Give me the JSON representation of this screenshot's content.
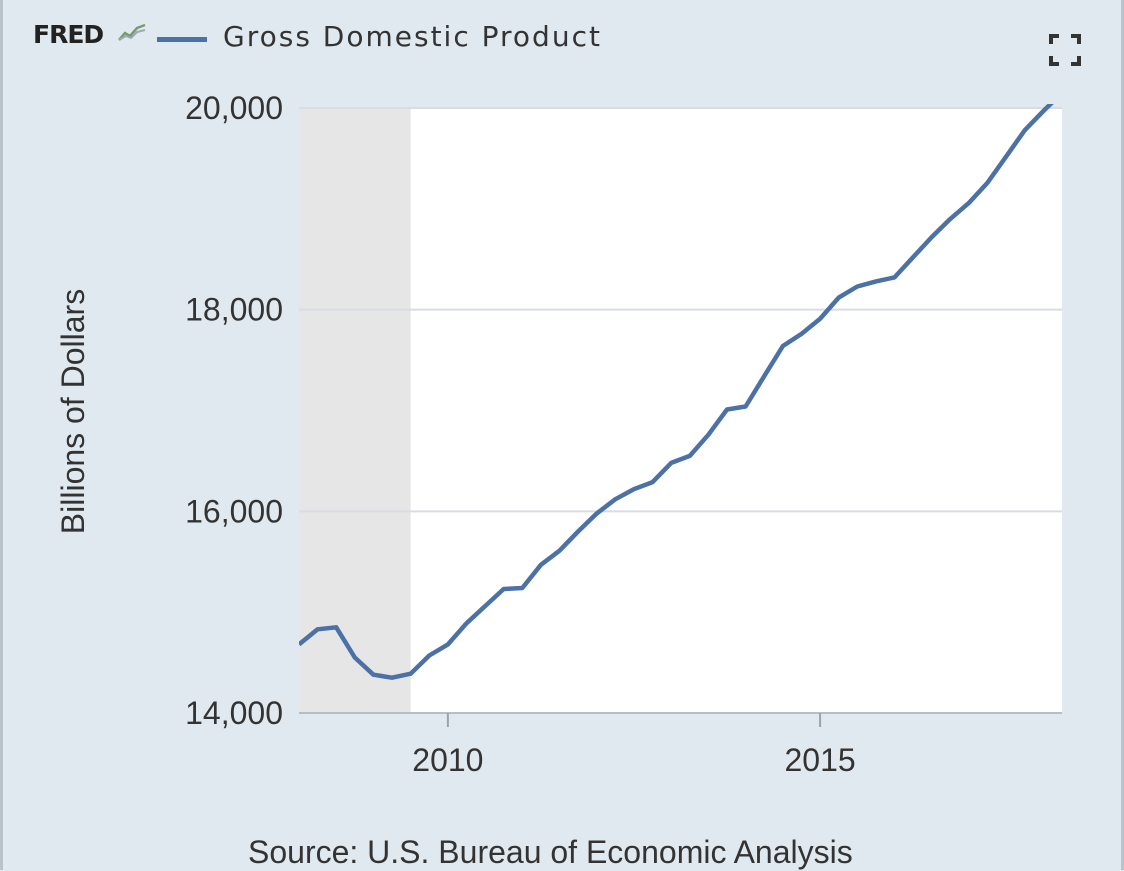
{
  "header": {
    "logo": "FRED",
    "legend_label": "Gross Domestic Product"
  },
  "icons": {
    "logo_graph": "fred-graph-icon",
    "fullscreen": "fullscreen-icon"
  },
  "colors": {
    "series": "#4c71a6",
    "background": "#e1e9f0",
    "plot": "#ffffff",
    "recession": "#e6e6e6",
    "grid": "#d7dde3"
  },
  "source": "Source: U.S. Bureau of Economic Analysis",
  "chart_data": {
    "type": "line",
    "title": "",
    "xlabel": "",
    "ylabel": "Billions of Dollars",
    "x_ticks": [
      "2010",
      "2015"
    ],
    "y_ticks": [
      "14,000",
      "16,000",
      "18,000",
      "20,000"
    ],
    "ylim": [
      14000,
      20000
    ],
    "xlim": [
      2008.0,
      2018.25
    ],
    "grid": true,
    "legend_position": "top-left",
    "recession_shading": [
      [
        2008.0,
        2009.5
      ]
    ],
    "series": [
      {
        "name": "Gross Domestic Product",
        "x": [
          2008.0,
          2008.25,
          2008.5,
          2008.75,
          2009.0,
          2009.25,
          2009.5,
          2009.75,
          2010.0,
          2010.25,
          2010.5,
          2010.75,
          2011.0,
          2011.25,
          2011.5,
          2011.75,
          2012.0,
          2012.25,
          2012.5,
          2012.75,
          2013.0,
          2013.25,
          2013.5,
          2013.75,
          2014.0,
          2014.25,
          2014.5,
          2014.75,
          2015.0,
          2015.25,
          2015.5,
          2015.75,
          2016.0,
          2016.25,
          2016.5,
          2016.75,
          2017.0,
          2017.25,
          2017.5,
          2017.75,
          2018.0,
          2018.25
        ],
        "values": [
          14680,
          14830,
          14850,
          14550,
          14380,
          14350,
          14390,
          14570,
          14680,
          14890,
          15060,
          15230,
          15240,
          15470,
          15610,
          15800,
          15980,
          16120,
          16220,
          16290,
          16480,
          16550,
          16760,
          17010,
          17040,
          17340,
          17640,
          17760,
          17910,
          18120,
          18230,
          18280,
          18320,
          18520,
          18720,
          18900,
          19060,
          19260,
          19520,
          19780,
          19970,
          20150
        ]
      }
    ]
  }
}
